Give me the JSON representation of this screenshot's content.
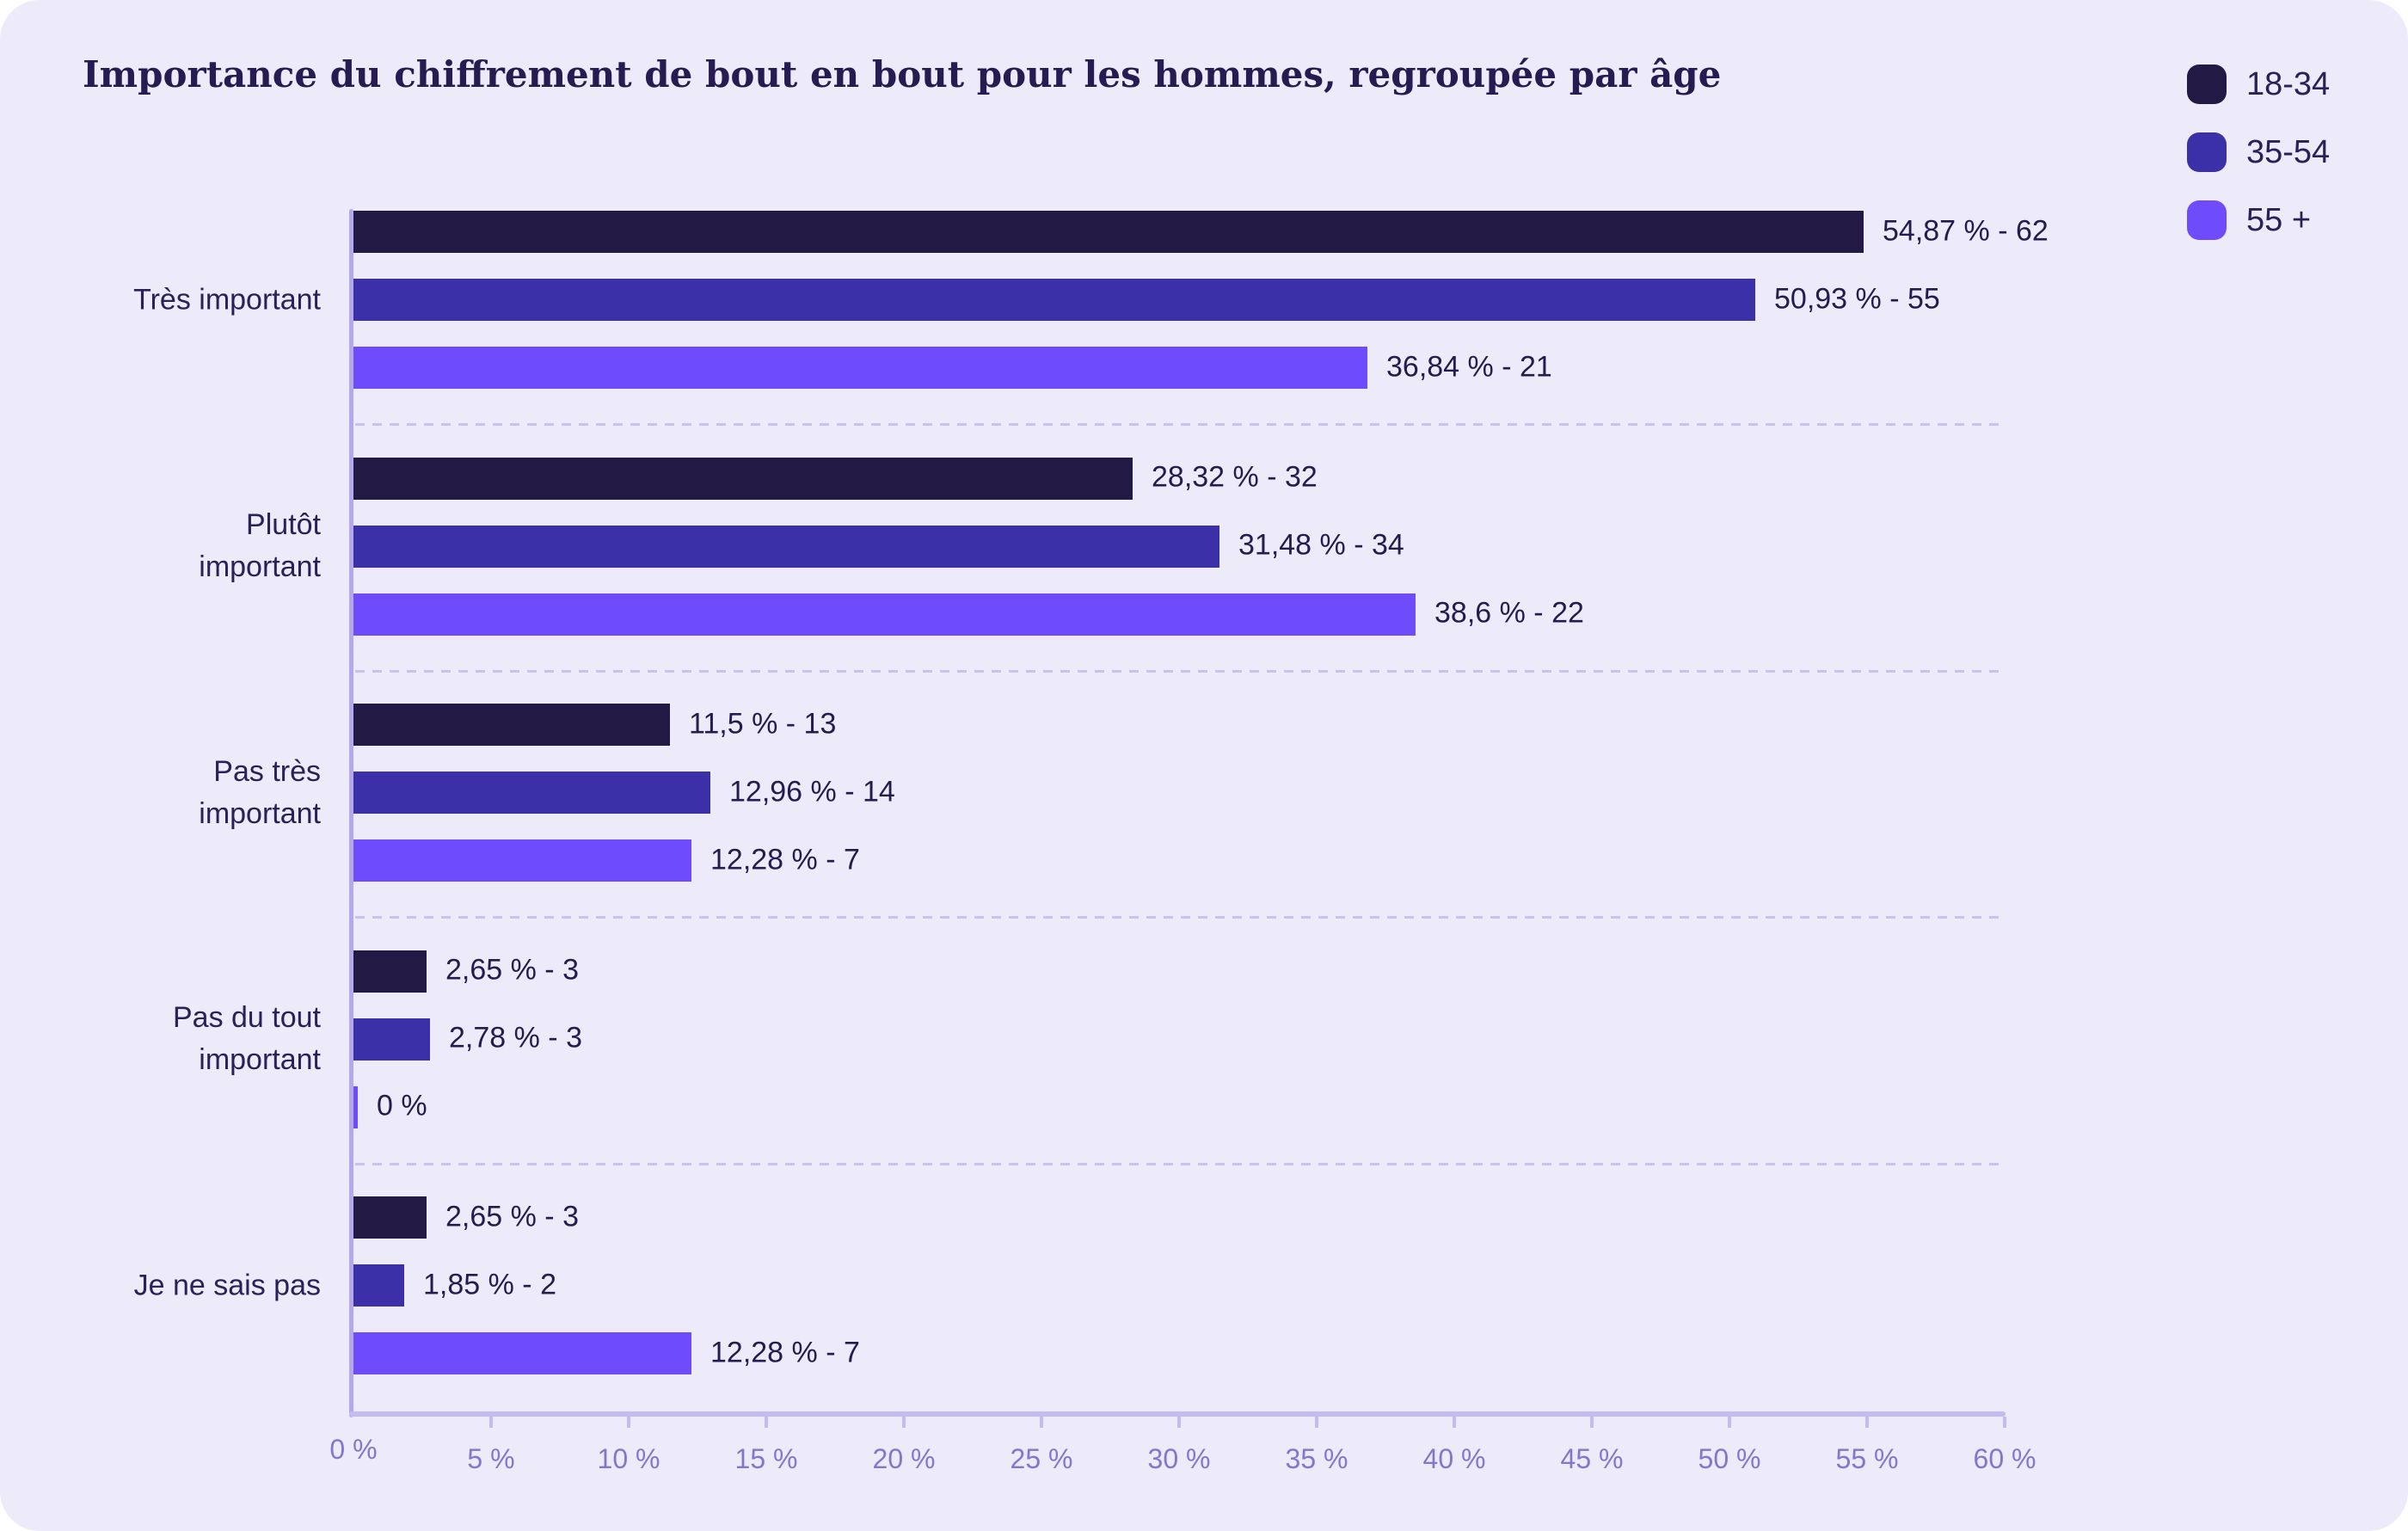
{
  "title": "Importance du chiffrement de bout en bout pour les hommes, regroupée par âge",
  "colors": {
    "background": "#EDEAFA",
    "axis": "#C5BAF2",
    "axis_vertical": "#B5A9EE",
    "separator": "#CBC0F2",
    "tick_text": "#8476CB",
    "label_text": "#2B2158",
    "value_text": "#241C4E",
    "title_text": "#261C52",
    "series_18_34": "#221945",
    "series_35_54": "#3C30A8",
    "series_55_plus": "#6F4CFB"
  },
  "legend": {
    "items": [
      {
        "label": "18-34",
        "color": "#221945"
      },
      {
        "label": "35-54",
        "color": "#3C30A8"
      },
      {
        "label": "55 +",
        "color": "#6F4CFB"
      }
    ]
  },
  "axis": {
    "xticks": [
      "0 %",
      "5 %",
      "10 %",
      "15 %",
      "20 %",
      "25 %",
      "30 %",
      "35 %",
      "40 %",
      "45 %",
      "50 %",
      "55 %",
      "60 %"
    ],
    "xlim": [
      0,
      60
    ]
  },
  "groups": [
    {
      "label": "Très important",
      "bars": [
        {
          "series": 0,
          "value": 54.87,
          "text": "54,87 % - 62"
        },
        {
          "series": 1,
          "value": 50.93,
          "text": "50,93 % - 55"
        },
        {
          "series": 2,
          "value": 36.84,
          "text": "36,84 % - 21"
        }
      ]
    },
    {
      "label": "Plutôt\nimportant",
      "bars": [
        {
          "series": 0,
          "value": 28.32,
          "text": "28,32 % - 32"
        },
        {
          "series": 1,
          "value": 31.48,
          "text": "31,48 % - 34"
        },
        {
          "series": 2,
          "value": 38.6,
          "text": "38,6 % - 22"
        }
      ]
    },
    {
      "label": "Pas très\nimportant",
      "bars": [
        {
          "series": 0,
          "value": 11.5,
          "text": "11,5 % - 13"
        },
        {
          "series": 1,
          "value": 12.96,
          "text": "12,96 % - 14"
        },
        {
          "series": 2,
          "value": 12.28,
          "text": "12,28 % - 7"
        }
      ]
    },
    {
      "label": "Pas du tout\nimportant",
      "bars": [
        {
          "series": 0,
          "value": 2.65,
          "text": "2,65 % - 3"
        },
        {
          "series": 1,
          "value": 2.78,
          "text": "2,78 % - 3"
        },
        {
          "series": 2,
          "value": 0,
          "text": "0 %"
        }
      ]
    },
    {
      "label": "Je ne sais pas",
      "bars": [
        {
          "series": 0,
          "value": 2.65,
          "text": "2,65 % - 3"
        },
        {
          "series": 1,
          "value": 1.85,
          "text": "1,85 % - 2"
        },
        {
          "series": 2,
          "value": 12.28,
          "text": "12,28 % - 7"
        }
      ]
    }
  ],
  "chart_data": {
    "type": "bar",
    "orientation": "horizontal",
    "title": "Importance du chiffrement de bout en bout pour les hommes, regroupée par âge",
    "categories": [
      "Très important",
      "Plutôt important",
      "Pas très important",
      "Pas du tout important",
      "Je ne sais pas"
    ],
    "series": [
      {
        "name": "18-34",
        "color": "#221945",
        "values": [
          54.87,
          28.32,
          11.5,
          2.65,
          2.65
        ],
        "counts": [
          62,
          32,
          13,
          3,
          3
        ]
      },
      {
        "name": "35-54",
        "color": "#3C30A8",
        "values": [
          50.93,
          31.48,
          12.96,
          2.78,
          1.85
        ],
        "counts": [
          55,
          34,
          14,
          3,
          2
        ]
      },
      {
        "name": "55 +",
        "color": "#6F4CFB",
        "values": [
          36.84,
          38.6,
          12.28,
          0,
          12.28
        ],
        "counts": [
          21,
          22,
          7,
          null,
          7
        ]
      }
    ],
    "xlabel": "",
    "ylabel": "",
    "xlim": [
      0,
      60
    ],
    "xtick_step": 5,
    "grid": "dashed separators between category groups",
    "legend_position": "top-right",
    "value_label_format": "{percent} % - {count}"
  }
}
